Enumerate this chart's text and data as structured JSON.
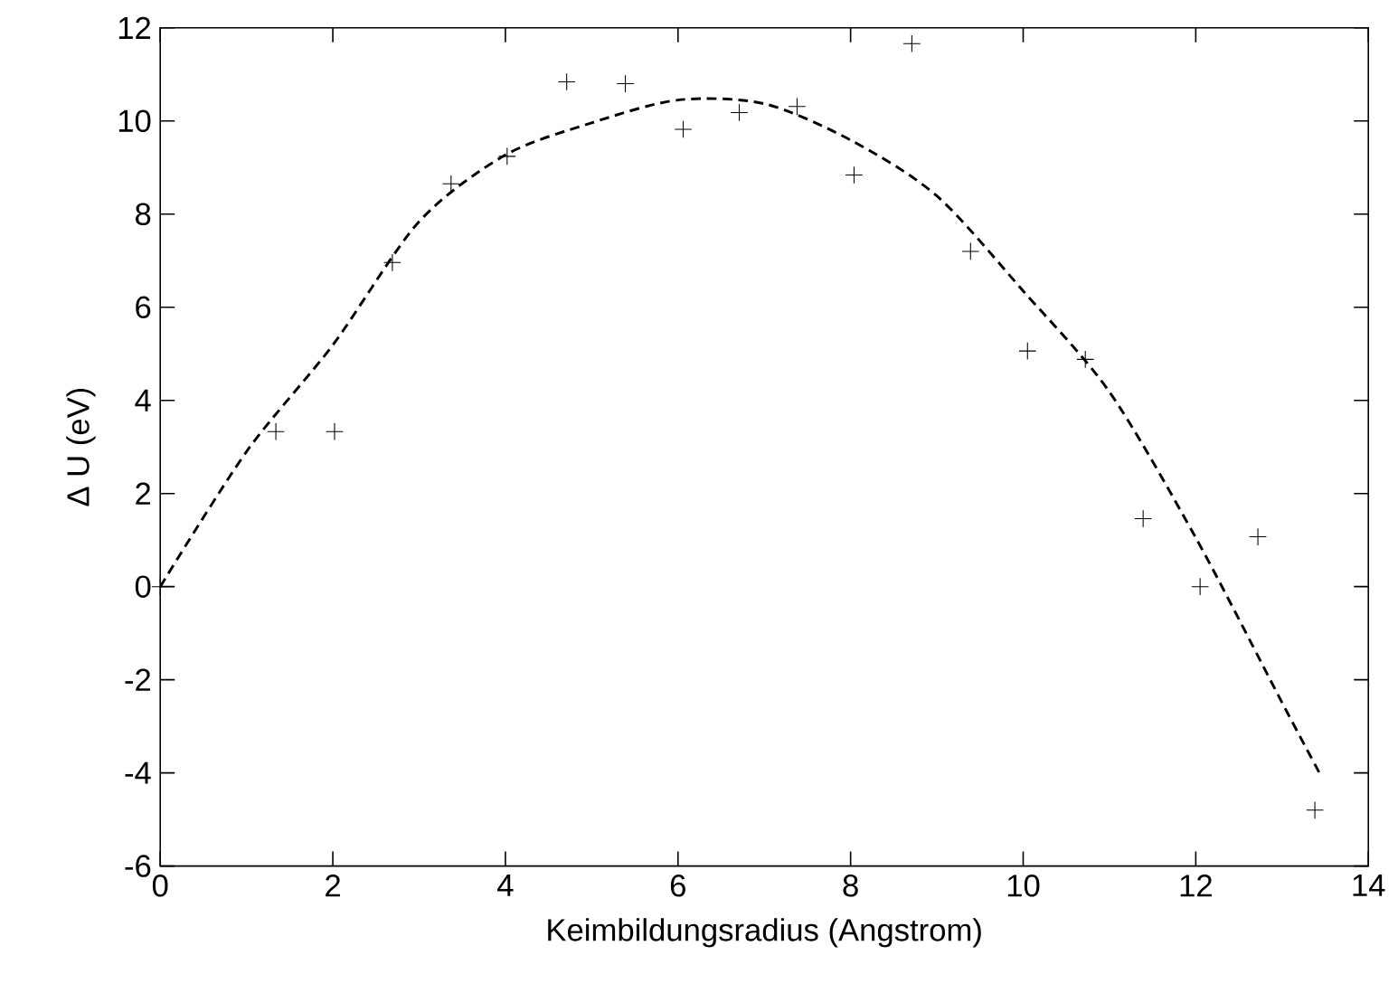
{
  "chart_data": {
    "type": "scatter",
    "xlabel": "Keimbildungsradius (Angstrom)",
    "ylabel": "Δ U (eV)",
    "xlim": [
      0,
      14
    ],
    "ylim": [
      -6,
      12
    ],
    "xticks": [
      0,
      2,
      4,
      6,
      8,
      10,
      12,
      14
    ],
    "yticks": [
      -6,
      -4,
      -2,
      0,
      2,
      4,
      6,
      8,
      10,
      12
    ],
    "grid": false,
    "series": [
      {
        "color": "#000000",
        "marker": "cross",
        "x": [
          0,
          1.34,
          2.02,
          2.69,
          3.37,
          4.02,
          4.71,
          5.39,
          6.06,
          6.71,
          7.38,
          8.04,
          8.71,
          9.39,
          10.05,
          10.72,
          11.39,
          12.05,
          12.72,
          13.38
        ],
        "values": [
          0,
          3.33,
          3.33,
          6.96,
          8.65,
          9.24,
          10.84,
          10.8,
          9.82,
          10.18,
          10.31,
          8.84,
          11.66,
          7.2,
          5.06,
          4.88,
          1.46,
          0,
          1.07,
          -4.8
        ]
      },
      {
        "type": "line",
        "color": "#000000",
        "marker": "none",
        "line_style": "dashed",
        "x": [
          0,
          1,
          2,
          3,
          4,
          5,
          6,
          7,
          8,
          9,
          10,
          11,
          12,
          13,
          13.43
        ],
        "values": [
          0,
          2.9,
          5.19,
          7.84,
          9.27,
          9.96,
          10.45,
          10.37,
          9.59,
          8.39,
          6.35,
          4.18,
          1.05,
          -2.49,
          -3.99
        ]
      }
    ]
  }
}
